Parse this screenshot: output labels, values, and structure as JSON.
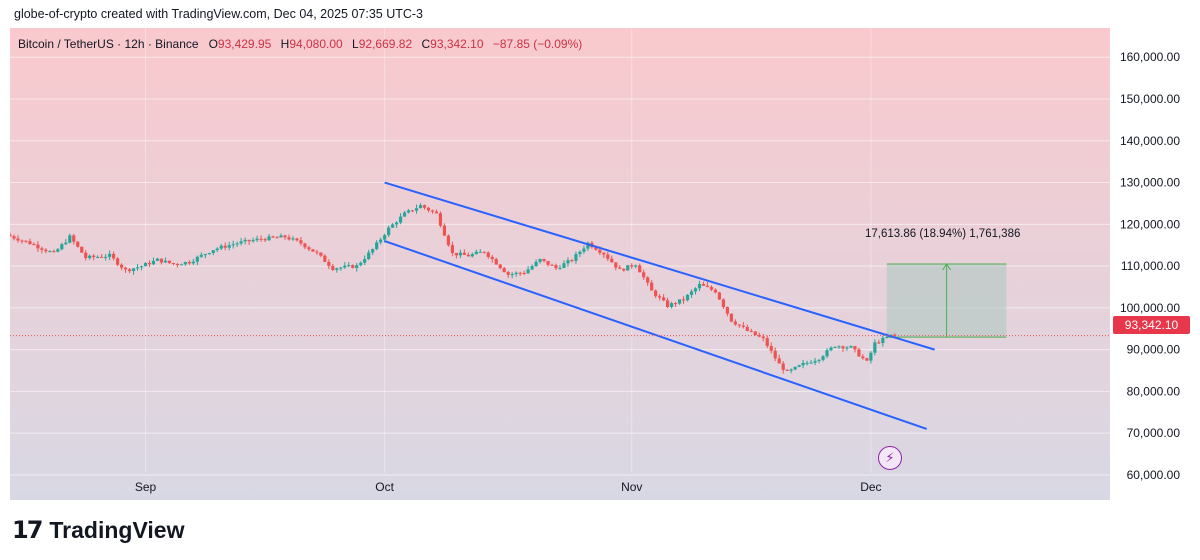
{
  "header": {
    "attribution": "globe-of-crypto created with TradingView.com, Dec 04, 2025 07:35 UTC-3"
  },
  "legend": {
    "symbol": "Bitcoin / TetherUS · 12h · Binance",
    "open_label": "O",
    "open": "93,429.95",
    "high_label": "H",
    "high": "94,080.00",
    "low_label": "L",
    "low": "92,669.82",
    "close_label": "C",
    "close": "93,342.10",
    "change": "−87.85 (−0.09%)"
  },
  "price_tag": "93,342.10",
  "measure_label": "17,613.86 (18.94%) 1,761,386",
  "branding": {
    "logo_text": "TradingView",
    "logo_mark": "17"
  },
  "icons": {
    "bolt": "lightning-icon"
  },
  "colors": {
    "up": "#26a69a",
    "down": "#ef5350",
    "channel": "#2962ff",
    "bg_top": "#f9c9cd",
    "bg_bottom": "#d8d8e4",
    "measure_fill": "#a9c9c0",
    "measure_line": "#4caf50"
  },
  "chart_data": {
    "type": "candlestick",
    "y_ticks": [
      "160,000.00",
      "150,000.00",
      "140,000.00",
      "130,000.00",
      "120,000.00",
      "110,000.00",
      "100,000.00",
      "90,000.00",
      "80,000.00",
      "70,000.00",
      "60,000.00"
    ],
    "y_tick_values": [
      160000,
      150000,
      140000,
      130000,
      120000,
      110000,
      100000,
      90000,
      80000,
      70000,
      60000
    ],
    "x_ticks": [
      "Sep",
      "Oct",
      "Nov",
      "Dec"
    ],
    "x_tick_dates": [
      "2025-09-01",
      "2025-10-01",
      "2025-11-01",
      "2025-12-01"
    ],
    "ylim": [
      54000,
      167000
    ],
    "xlim": [
      "2025-08-15",
      "2025-12-31"
    ],
    "current_price": 93342.1,
    "grid": true,
    "channel_upper": [
      [
        "2025-10-01",
        130000
      ],
      [
        "2025-12-09",
        90000
      ]
    ],
    "channel_lower": [
      [
        "2025-10-01",
        116000
      ],
      [
        "2025-12-08",
        71000
      ]
    ],
    "measure_range": {
      "start": "2025-12-03",
      "end": "2025-12-18",
      "low": 93000,
      "high": 110500
    },
    "price_points": [
      [
        "2025-08-15",
        117500
      ],
      [
        "2025-08-18",
        115500
      ],
      [
        "2025-08-21",
        113000
      ],
      [
        "2025-08-23",
        117000
      ],
      [
        "2025-08-25",
        112000
      ],
      [
        "2025-08-28",
        112500
      ],
      [
        "2025-08-30",
        109000
      ],
      [
        "2025-09-01",
        110000
      ],
      [
        "2025-09-03",
        111500
      ],
      [
        "2025-09-05",
        110500
      ],
      [
        "2025-09-07",
        111000
      ],
      [
        "2025-09-10",
        114000
      ],
      [
        "2025-09-13",
        115500
      ],
      [
        "2025-09-16",
        116500
      ],
      [
        "2025-09-19",
        117000
      ],
      [
        "2025-09-21",
        115500
      ],
      [
        "2025-09-23",
        113000
      ],
      [
        "2025-09-25",
        109500
      ],
      [
        "2025-09-28",
        110000
      ],
      [
        "2025-09-30",
        114000
      ],
      [
        "2025-10-02",
        119000
      ],
      [
        "2025-10-04",
        122500
      ],
      [
        "2025-10-06",
        124500
      ],
      [
        "2025-10-08",
        122500
      ],
      [
        "2025-10-10",
        113000
      ],
      [
        "2025-10-12",
        112500
      ],
      [
        "2025-10-14",
        113500
      ],
      [
        "2025-10-17",
        108000
      ],
      [
        "2025-10-19",
        108500
      ],
      [
        "2025-10-21",
        111500
      ],
      [
        "2025-10-23",
        109500
      ],
      [
        "2025-10-25",
        111500
      ],
      [
        "2025-10-27",
        115500
      ],
      [
        "2025-10-29",
        113000
      ],
      [
        "2025-10-31",
        109000
      ],
      [
        "2025-11-02",
        110500
      ],
      [
        "2025-11-04",
        104000
      ],
      [
        "2025-11-06",
        100500
      ],
      [
        "2025-11-08",
        102000
      ],
      [
        "2025-11-10",
        105500
      ],
      [
        "2025-11-12",
        104000
      ],
      [
        "2025-11-14",
        97000
      ],
      [
        "2025-11-16",
        94500
      ],
      [
        "2025-11-18",
        92500
      ],
      [
        "2025-11-20",
        86500
      ],
      [
        "2025-11-21",
        84500
      ],
      [
        "2025-11-23",
        86500
      ],
      [
        "2025-11-25",
        88000
      ],
      [
        "2025-11-27",
        91000
      ],
      [
        "2025-11-29",
        90500
      ],
      [
        "2025-12-01",
        87000
      ],
      [
        "2025-12-02",
        91500
      ],
      [
        "2025-12-04",
        93342.1
      ]
    ]
  }
}
